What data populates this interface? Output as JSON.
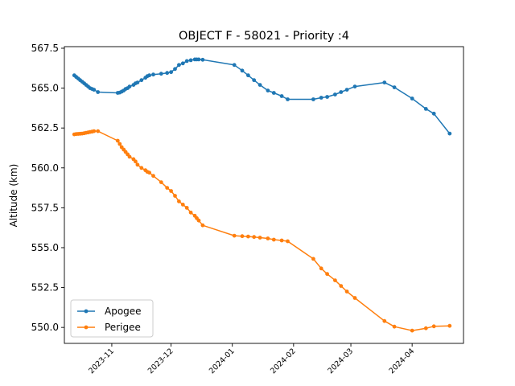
{
  "chart_data": {
    "type": "line",
    "title": "OBJECT F - 58021 - Priority :4",
    "xlabel": "",
    "ylabel": "Altitude (km)",
    "xlim": [
      "2023-10-08",
      "2024-04-27"
    ],
    "ylim": [
      549.0,
      567.6
    ],
    "grid": false,
    "legend_position": "lower-left",
    "yticks": [
      550.0,
      552.5,
      555.0,
      557.5,
      560.0,
      562.5,
      565.0,
      567.5
    ],
    "ytick_labels": [
      "550.0",
      "552.5",
      "555.0",
      "557.5",
      "560.0",
      "562.5",
      "565.0",
      "567.5"
    ],
    "xticks": [
      "2023-11-01",
      "2023-12-01",
      "2024-01-01",
      "2024-02-01",
      "2024-03-01",
      "2024-04-01"
    ],
    "xtick_labels": [
      "2023-11",
      "2023-12",
      "2024-01",
      "2024-02",
      "2024-03",
      "2024-04"
    ],
    "series": [
      {
        "name": "Apogee",
        "color": "#1f77b4",
        "points": [
          [
            "2023-10-13",
            565.8
          ],
          [
            "2023-10-14",
            565.7
          ],
          [
            "2023-10-15",
            565.6
          ],
          [
            "2023-10-16",
            565.5
          ],
          [
            "2023-10-17",
            565.4
          ],
          [
            "2023-10-18",
            565.3
          ],
          [
            "2023-10-19",
            565.2
          ],
          [
            "2023-10-20",
            565.1
          ],
          [
            "2023-10-21",
            565.0
          ],
          [
            "2023-10-22",
            564.95
          ],
          [
            "2023-10-23",
            564.9
          ],
          [
            "2023-10-25",
            564.75
          ],
          [
            "2023-11-04",
            564.7
          ],
          [
            "2023-11-05",
            564.72
          ],
          [
            "2023-11-06",
            564.78
          ],
          [
            "2023-11-07",
            564.85
          ],
          [
            "2023-11-08",
            564.95
          ],
          [
            "2023-11-09",
            565.0
          ],
          [
            "2023-11-10",
            565.1
          ],
          [
            "2023-11-12",
            565.2
          ],
          [
            "2023-11-13",
            565.3
          ],
          [
            "2023-11-14",
            565.35
          ],
          [
            "2023-11-16",
            565.5
          ],
          [
            "2023-11-18",
            565.65
          ],
          [
            "2023-11-19",
            565.75
          ],
          [
            "2023-11-20",
            565.8
          ],
          [
            "2023-11-22",
            565.85
          ],
          [
            "2023-11-26",
            565.9
          ],
          [
            "2023-11-29",
            565.95
          ],
          [
            "2023-12-01",
            566.0
          ],
          [
            "2023-12-03",
            566.2
          ],
          [
            "2023-12-05",
            566.45
          ],
          [
            "2023-12-07",
            566.55
          ],
          [
            "2023-12-09",
            566.7
          ],
          [
            "2023-12-11",
            566.75
          ],
          [
            "2023-12-13",
            566.8
          ],
          [
            "2023-12-14",
            566.8
          ],
          [
            "2023-12-15",
            566.8
          ],
          [
            "2023-12-17",
            566.78
          ],
          [
            "2024-01-02",
            566.45
          ],
          [
            "2024-01-06",
            566.1
          ],
          [
            "2024-01-09",
            565.8
          ],
          [
            "2024-01-12",
            565.5
          ],
          [
            "2024-01-15",
            565.2
          ],
          [
            "2024-01-19",
            564.85
          ],
          [
            "2024-01-22",
            564.7
          ],
          [
            "2024-01-26",
            564.5
          ],
          [
            "2024-01-29",
            564.3
          ],
          [
            "2024-02-11",
            564.3
          ],
          [
            "2024-02-15",
            564.4
          ],
          [
            "2024-02-18",
            564.45
          ],
          [
            "2024-02-22",
            564.6
          ],
          [
            "2024-02-25",
            564.75
          ],
          [
            "2024-02-28",
            564.9
          ],
          [
            "2024-03-03",
            565.1
          ],
          [
            "2024-03-18",
            565.35
          ],
          [
            "2024-03-23",
            565.05
          ],
          [
            "2024-04-01",
            564.35
          ],
          [
            "2024-04-08",
            563.7
          ],
          [
            "2024-04-12",
            563.4
          ],
          [
            "2024-04-20",
            562.15
          ]
        ]
      },
      {
        "name": "Perigee",
        "color": "#ff7f0e",
        "points": [
          [
            "2023-10-13",
            562.1
          ],
          [
            "2023-10-14",
            562.12
          ],
          [
            "2023-10-15",
            562.13
          ],
          [
            "2023-10-16",
            562.14
          ],
          [
            "2023-10-17",
            562.15
          ],
          [
            "2023-10-18",
            562.17
          ],
          [
            "2023-10-19",
            562.2
          ],
          [
            "2023-10-20",
            562.22
          ],
          [
            "2023-10-21",
            562.25
          ],
          [
            "2023-10-22",
            562.27
          ],
          [
            "2023-10-23",
            562.3
          ],
          [
            "2023-10-25",
            562.3
          ],
          [
            "2023-11-04",
            561.7
          ],
          [
            "2023-11-05",
            561.5
          ],
          [
            "2023-11-06",
            561.3
          ],
          [
            "2023-11-07",
            561.15
          ],
          [
            "2023-11-08",
            561.0
          ],
          [
            "2023-11-09",
            560.85
          ],
          [
            "2023-11-10",
            560.7
          ],
          [
            "2023-11-12",
            560.55
          ],
          [
            "2023-11-13",
            560.4
          ],
          [
            "2023-11-14",
            560.2
          ],
          [
            "2023-11-16",
            560.0
          ],
          [
            "2023-11-18",
            559.85
          ],
          [
            "2023-11-19",
            559.75
          ],
          [
            "2023-11-20",
            559.7
          ],
          [
            "2023-11-22",
            559.5
          ],
          [
            "2023-11-26",
            559.1
          ],
          [
            "2023-11-29",
            558.75
          ],
          [
            "2023-12-01",
            558.55
          ],
          [
            "2023-12-03",
            558.25
          ],
          [
            "2023-12-05",
            557.9
          ],
          [
            "2023-12-07",
            557.7
          ],
          [
            "2023-12-09",
            557.5
          ],
          [
            "2023-12-11",
            557.2
          ],
          [
            "2023-12-13",
            557.0
          ],
          [
            "2023-12-14",
            556.85
          ],
          [
            "2023-12-15",
            556.7
          ],
          [
            "2023-12-17",
            556.4
          ],
          [
            "2024-01-02",
            555.75
          ],
          [
            "2024-01-06",
            555.72
          ],
          [
            "2024-01-09",
            555.7
          ],
          [
            "2024-01-12",
            555.67
          ],
          [
            "2024-01-15",
            555.63
          ],
          [
            "2024-01-19",
            555.58
          ],
          [
            "2024-01-22",
            555.5
          ],
          [
            "2024-01-26",
            555.45
          ],
          [
            "2024-01-29",
            555.4
          ],
          [
            "2024-02-11",
            554.3
          ],
          [
            "2024-02-15",
            553.7
          ],
          [
            "2024-02-18",
            553.35
          ],
          [
            "2024-02-22",
            552.95
          ],
          [
            "2024-02-25",
            552.6
          ],
          [
            "2024-02-28",
            552.25
          ],
          [
            "2024-03-03",
            551.85
          ],
          [
            "2024-03-18",
            550.4
          ],
          [
            "2024-03-23",
            550.05
          ],
          [
            "2024-04-01",
            549.8
          ],
          [
            "2024-04-08",
            549.95
          ],
          [
            "2024-04-12",
            550.07
          ],
          [
            "2024-04-20",
            550.1
          ]
        ]
      }
    ]
  }
}
